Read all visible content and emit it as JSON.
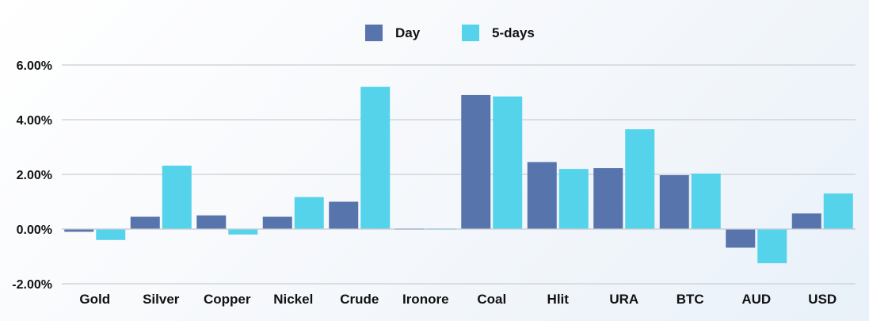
{
  "chart_data": {
    "type": "bar",
    "categories": [
      "Gold",
      "Silver",
      "Copper",
      "Nickel",
      "Crude",
      "Ironore",
      "Coal",
      "Hlit",
      "URA",
      "BTC",
      "AUD",
      "USD"
    ],
    "series": [
      {
        "name": "Day",
        "color": "#5874ac",
        "values": [
          -0.1,
          0.45,
          0.5,
          0.45,
          1.0,
          0.0,
          4.9,
          2.45,
          2.23,
          1.97,
          -0.68,
          0.57
        ]
      },
      {
        "name": "5-days",
        "color": "#55d3ea",
        "values": [
          -0.4,
          2.32,
          -0.2,
          1.17,
          5.2,
          0.0,
          4.85,
          2.2,
          3.65,
          2.03,
          -1.25,
          1.3
        ]
      }
    ],
    "ylim": [
      -2,
      6
    ],
    "yticks": [
      -2,
      0,
      2,
      4,
      6
    ],
    "ytick_labels": [
      "-2.00%",
      "0.00%",
      "2.00%",
      "4.00%",
      "6.00%"
    ],
    "grid": true,
    "legend_position": "top-center",
    "title": "",
    "xlabel": "",
    "ylabel": ""
  }
}
